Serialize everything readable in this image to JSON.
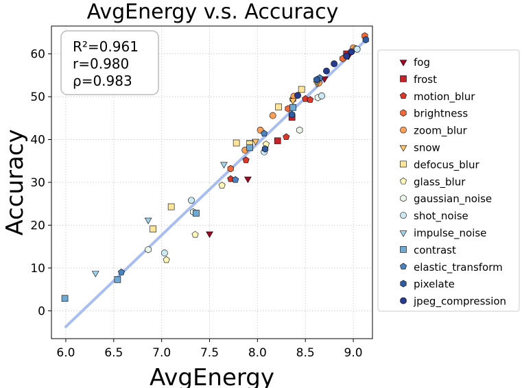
{
  "chart_data": {
    "type": "scatter",
    "title": "AvgEnergy  v.s.  Accuracy",
    "xlabel": "AvgEnergy",
    "ylabel": "Accuracy",
    "xlim": [
      5.85,
      9.2
    ],
    "ylim": [
      -6.5,
      66.5
    ],
    "x_ticks": [
      6.0,
      6.5,
      7.0,
      7.5,
      8.0,
      8.5,
      9.0
    ],
    "x_tick_labels": [
      "6.0",
      "6.5",
      "7.0",
      "7.5",
      "8.0",
      "8.5",
      "9.0"
    ],
    "y_ticks": [
      0,
      10,
      20,
      30,
      40,
      50,
      60
    ],
    "y_tick_labels": [
      "0",
      "10",
      "20",
      "30",
      "40",
      "50",
      "60"
    ],
    "grid": true,
    "stats": [
      "R²=0.961",
      "r=0.980",
      "ρ=0.983"
    ],
    "legend_position": "right-outside",
    "fit_line": {
      "x": [
        6.0,
        9.13
      ],
      "y": [
        -3.7,
        63.2
      ],
      "color": "#9fb6ee"
    },
    "series": [
      {
        "name": "fog",
        "marker": "triangle-down",
        "color": "#9e0a26",
        "points": [
          [
            7.5,
            18.1
          ],
          [
            7.9,
            30.9
          ],
          [
            8.7,
            54.3
          ],
          [
            8.95,
            59.6
          ]
        ]
      },
      {
        "name": "frost",
        "marker": "square",
        "color": "#c5232b",
        "points": [
          [
            8.21,
            39.7
          ],
          [
            8.36,
            45.2
          ],
          [
            8.93,
            60.0
          ]
        ]
      },
      {
        "name": "motion_blur",
        "marker": "pentagon",
        "color": "#d73a2d",
        "points": [
          [
            7.72,
            30.8
          ],
          [
            7.88,
            35.2
          ],
          [
            8.3,
            40.6
          ],
          [
            8.5,
            49.5
          ],
          [
            8.55,
            49.3
          ]
        ]
      },
      {
        "name": "brightness",
        "marker": "hexagon",
        "color": "#ee6a3c",
        "points": [
          [
            7.72,
            33.2
          ],
          [
            8.37,
            49.4
          ],
          [
            9.12,
            64.2
          ],
          [
            8.89,
            58.9
          ],
          [
            8.32,
            47.2
          ]
        ]
      },
      {
        "name": "zoom_blur",
        "marker": "circle",
        "color": "#f9a15a",
        "points": [
          [
            7.87,
            37.5
          ],
          [
            8.03,
            42.2
          ],
          [
            8.16,
            45.6
          ],
          [
            8.38,
            50.1
          ],
          [
            9.0,
            61.4
          ],
          [
            8.64,
            53.2
          ]
        ]
      },
      {
        "name": "snow",
        "marker": "triangle-down",
        "color": "#fdc66e",
        "points": [
          [
            7.92,
            39.4
          ],
          [
            7.98,
            39.7
          ],
          [
            8.37,
            49.2
          ],
          [
            8.62,
            53.2
          ]
        ]
      },
      {
        "name": "defocus_blur",
        "marker": "square",
        "color": "#fde59c",
        "points": [
          [
            6.91,
            19.1
          ],
          [
            7.1,
            24.3
          ],
          [
            7.78,
            39.2
          ],
          [
            7.92,
            39.0
          ],
          [
            8.22,
            47.6
          ],
          [
            8.46,
            51.7
          ]
        ]
      },
      {
        "name": "glass_blur",
        "marker": "pentagon",
        "color": "#fdf6b6",
        "points": [
          [
            7.05,
            11.9
          ],
          [
            7.35,
            17.8
          ],
          [
            7.63,
            29.3
          ],
          [
            8.09,
            38.9
          ]
        ]
      },
      {
        "name": "gaussian_noise",
        "marker": "hexagon",
        "color": "#eaf6ea",
        "points": [
          [
            6.86,
            14.3
          ],
          [
            7.33,
            23.1
          ],
          [
            8.44,
            42.2
          ],
          [
            8.63,
            49.8
          ],
          [
            9.03,
            61.2
          ]
        ]
      },
      {
        "name": "shot_noise",
        "marker": "circle",
        "color": "#cbe8f3",
        "points": [
          [
            7.03,
            13.5
          ],
          [
            7.31,
            25.8
          ],
          [
            8.07,
            37.1
          ],
          [
            8.67,
            50.2
          ],
          [
            9.04,
            61.1
          ]
        ]
      },
      {
        "name": "impulse_noise",
        "marker": "triangle-down",
        "color": "#a1d2e6",
        "points": [
          [
            6.31,
            8.9
          ],
          [
            6.86,
            21.3
          ],
          [
            7.65,
            34.3
          ],
          [
            8.62,
            53.7
          ]
        ]
      },
      {
        "name": "contrast",
        "marker": "square",
        "color": "#6fa8d0",
        "points": [
          [
            5.99,
            2.9
          ],
          [
            6.54,
            7.3
          ],
          [
            7.36,
            22.8
          ],
          [
            7.92,
            38.1
          ],
          [
            8.37,
            47.5
          ]
        ]
      },
      {
        "name": "elastic_transform",
        "marker": "pentagon",
        "color": "#4a83bd",
        "points": [
          [
            6.58,
            9.0
          ],
          [
            7.77,
            30.6
          ],
          [
            8.07,
            41.4
          ],
          [
            8.65,
            54.4
          ]
        ]
      },
      {
        "name": "pixelate",
        "marker": "hexagon",
        "color": "#2e5c9f",
        "points": [
          [
            8.08,
            37.8
          ],
          [
            8.36,
            45.8
          ],
          [
            8.62,
            54.0
          ],
          [
            9.13,
            63.3
          ]
        ]
      },
      {
        "name": "jpeg_compression",
        "marker": "circle",
        "color": "#263b8e",
        "points": [
          [
            8.42,
            50.3
          ],
          [
            8.72,
            56.0
          ],
          [
            8.8,
            57.7
          ],
          [
            8.93,
            59.5
          ],
          [
            8.98,
            60.5
          ]
        ]
      }
    ]
  }
}
